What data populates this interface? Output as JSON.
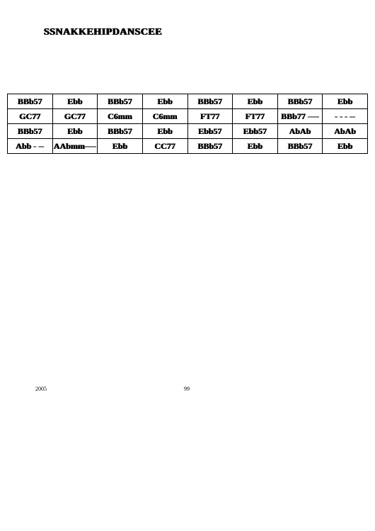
{
  "title": "SSNAKKEHIPDANSCEE",
  "table": {
    "columns": 8,
    "rows": [
      [
        "BBb57",
        "Ebb",
        "BBb57",
        "Ebb",
        "BBb57",
        "Ebb",
        "BBb57",
        "Ebb"
      ],
      [
        "GC77",
        "GC77",
        "C6mm",
        "C6mm",
        "FT77",
        "FT77",
        "BBb77 ----",
        "- - - --"
      ],
      [
        "BBb57",
        "Ebb",
        "BBb57",
        "Ebb",
        "Ebb57",
        "Ebb57",
        "AbAb",
        "AbAb"
      ],
      [
        "Abb - --",
        "AAbmm----",
        "Ebb",
        "CC77",
        "BBb57",
        "Ebb",
        "BBb57",
        "Ebb"
      ]
    ]
  },
  "footer": {
    "year": "2005",
    "page": "99"
  },
  "colors": {
    "background": "#ffffff",
    "text": "#000000",
    "border": "#000000"
  }
}
